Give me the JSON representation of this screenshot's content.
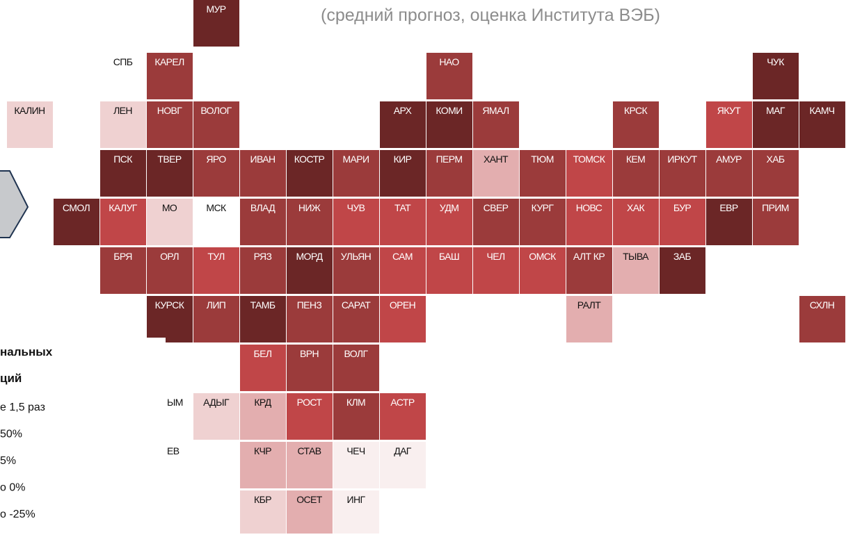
{
  "title": "(средний прогноз, оценка Института ВЭБ)",
  "legend": {
    "heading": [
      "нальных",
      "ций"
    ],
    "items": [
      "е 1,5 раз",
      "50%",
      "5%",
      "о 0%",
      "о -25%"
    ]
  },
  "rows": [
    [
      null,
      null,
      null,
      null,
      {
        "label": "МУР",
        "color": "#6b2626"
      }
    ],
    [
      null,
      null,
      {
        "label": "СПБ"
      },
      {
        "label": "КАРЕЛ",
        "color": "#9b3b3b"
      },
      null,
      null,
      null,
      null,
      null,
      {
        "label": "НАО",
        "color": "#9b3b3b"
      },
      null,
      null,
      null,
      null,
      null,
      null,
      {
        "label": "ЧУК",
        "color": "#6b2626"
      }
    ],
    [
      {
        "label": "КАЛИН",
        "color": "#efd1d1"
      },
      null,
      {
        "label": "ЛЕН",
        "color": "#efd1d1"
      },
      {
        "label": "НОВГ",
        "color": "#9b3b3b"
      },
      {
        "label": "ВОЛОГ",
        "color": "#9b3b3b"
      },
      null,
      null,
      null,
      {
        "label": "АРХ",
        "color": "#6b2626"
      },
      {
        "label": "КОМИ",
        "color": "#6b2626"
      },
      {
        "label": "ЯМАЛ",
        "color": "#9b3b3b"
      },
      null,
      null,
      {
        "label": "КРСК",
        "color": "#9b3b3b"
      },
      null,
      {
        "label": "ЯКУТ",
        "color": "#c04648"
      },
      {
        "label": "МАГ",
        "color": "#6b2626"
      },
      {
        "label": "КАМЧ",
        "color": "#6b2626"
      }
    ],
    [
      null,
      null,
      {
        "label": "ПСК",
        "color": "#6b2626"
      },
      {
        "label": "ТВЕР",
        "color": "#6b2626"
      },
      {
        "label": "ЯРО",
        "color": "#9b3b3b"
      },
      {
        "label": "ИВАН",
        "color": "#9b3b3b"
      },
      {
        "label": "КОСТР",
        "color": "#6b2626"
      },
      {
        "label": "МАРИ",
        "color": "#9b3b3b"
      },
      {
        "label": "КИР",
        "color": "#6b2626"
      },
      {
        "label": "ПЕРМ",
        "color": "#9b3b3b"
      },
      {
        "label": "ХАНТ",
        "color": "#e3aeaf"
      },
      {
        "label": "ТЮМ",
        "color": "#9b3b3b"
      },
      {
        "label": "ТОМСК",
        "color": "#c04648"
      },
      {
        "label": "КЕМ",
        "color": "#9b3b3b"
      },
      {
        "label": "ИРКУТ",
        "color": "#9b3b3b"
      },
      {
        "label": "АМУР",
        "color": "#9b3b3b"
      },
      {
        "label": "ХАБ",
        "color": "#9b3b3b"
      }
    ],
    [
      null,
      {
        "label": "СМОЛ",
        "color": "#6b2626"
      },
      {
        "label": "КАЛУГ",
        "color": "#c04648"
      },
      {
        "label": "МО",
        "color": "#efd1d1"
      },
      {
        "label": "МСК"
      },
      {
        "label": "ВЛАД",
        "color": "#9b3b3b"
      },
      {
        "label": "НИЖ",
        "color": "#9b3b3b"
      },
      {
        "label": "ЧУВ",
        "color": "#c04648"
      },
      {
        "label": "ТАТ",
        "color": "#c04648"
      },
      {
        "label": "УДМ",
        "color": "#c04648"
      },
      {
        "label": "СВЕР",
        "color": "#9b3b3b"
      },
      {
        "label": "КУРГ",
        "color": "#9b3b3b"
      },
      {
        "label": "НОВС",
        "color": "#c04648"
      },
      {
        "label": "ХАК",
        "color": "#c04648"
      },
      {
        "label": "БУР",
        "color": "#c04648"
      },
      {
        "label": "ЕВР",
        "color": "#6b2626"
      },
      {
        "label": "ПРИМ",
        "color": "#9b3b3b"
      }
    ],
    [
      null,
      null,
      {
        "label": "БРЯ",
        "color": "#9b3b3b"
      },
      {
        "label": "ОРЛ",
        "color": "#9b3b3b"
      },
      {
        "label": "ТУЛ",
        "color": "#c04648"
      },
      {
        "label": "РЯЗ",
        "color": "#9b3b3b"
      },
      {
        "label": "МОРД",
        "color": "#6b2626"
      },
      {
        "label": "УЛЬЯН",
        "color": "#9b3b3b"
      },
      {
        "label": "САМ",
        "color": "#c04648"
      },
      {
        "label": "БАШ",
        "color": "#c04648"
      },
      {
        "label": "ЧЕЛ",
        "color": "#c04648"
      },
      {
        "label": "ОМСК",
        "color": "#c04648"
      },
      {
        "label": "АЛТ КР",
        "color": "#9b3b3b"
      },
      {
        "label": "ТЫВА",
        "color": "#e3aeaf"
      },
      {
        "label": "ЗАБ",
        "color": "#6b2626"
      }
    ],
    [
      null,
      null,
      null,
      {
        "label": "КУРСК",
        "color": "#6b2626"
      },
      {
        "label": "ЛИП",
        "color": "#9b3b3b"
      },
      {
        "label": "ТАМБ",
        "color": "#6b2626"
      },
      {
        "label": "ПЕНЗ",
        "color": "#9b3b3b"
      },
      {
        "label": "САРАТ",
        "color": "#9b3b3b"
      },
      {
        "label": "ОРЕН",
        "color": "#c04648"
      },
      null,
      null,
      null,
      {
        "label": "РАЛТ",
        "color": "#e3aeaf"
      },
      null,
      null,
      null,
      null,
      {
        "label": "СХЛН",
        "color": "#9b3b3b"
      }
    ],
    [
      null,
      null,
      null,
      null,
      null,
      {
        "label": "БЕЛ",
        "color": "#c04648"
      },
      {
        "label": "ВРН",
        "color": "#9b3b3b"
      },
      {
        "label": "ВОЛГ",
        "color": "#9b3b3b"
      }
    ],
    [
      null,
      null,
      null,
      {
        "label": "ЫМ"
      },
      {
        "label": "АДЫГ",
        "color": "#efd1d1"
      },
      {
        "label": "КРД",
        "color": "#e3aeaf"
      },
      {
        "label": "РОСТ",
        "color": "#c04648"
      },
      {
        "label": "КЛМ",
        "color": "#9b3b3b"
      },
      {
        "label": "АСТР",
        "color": "#c04648"
      }
    ],
    [
      null,
      null,
      null,
      {
        "label": "ЕВ"
      },
      null,
      {
        "label": "КЧР",
        "color": "#e3aeaf"
      },
      {
        "label": "СТАВ",
        "color": "#e3aeaf"
      },
      {
        "label": "ЧЕЧ",
        "color": "#f9efef"
      },
      {
        "label": "ДАГ",
        "color": "#f9efef"
      }
    ],
    [
      null,
      null,
      null,
      null,
      null,
      {
        "label": "КБР",
        "color": "#efd1d1"
      },
      {
        "label": "ОСЕТ",
        "color": "#e3aeaf"
      },
      {
        "label": "ИНГ",
        "color": "#f9efef"
      }
    ]
  ]
}
